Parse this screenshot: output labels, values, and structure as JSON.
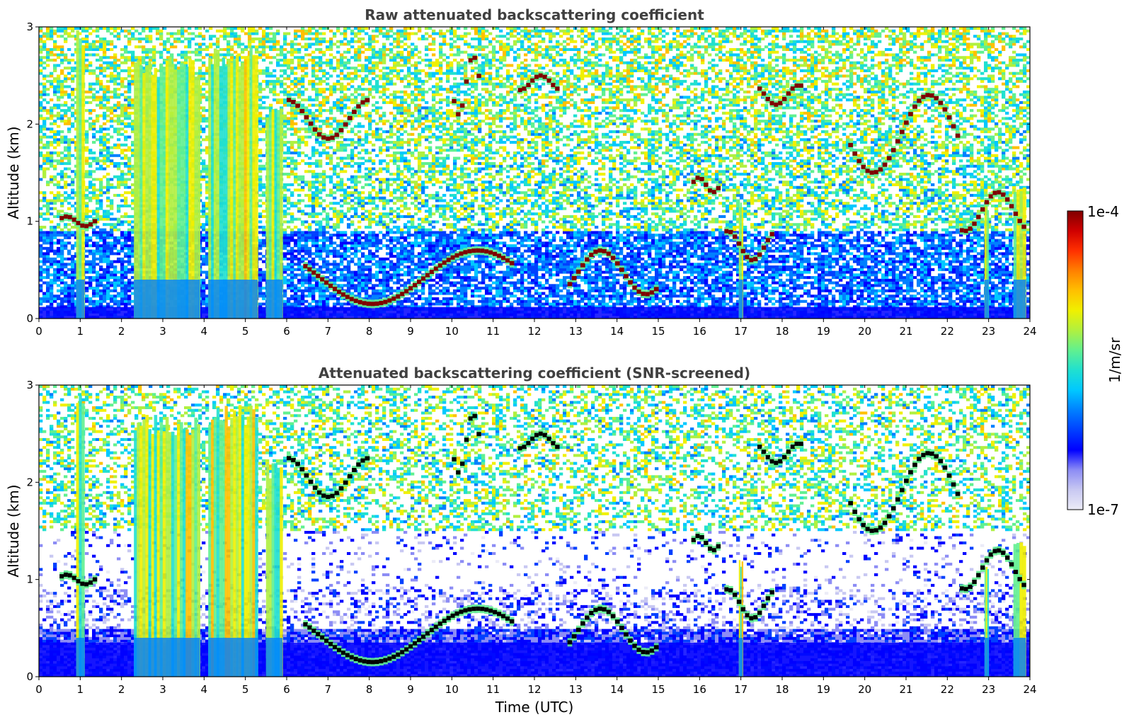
{
  "chart_data": [
    {
      "type": "heatmap",
      "title": "Raw attenuated backscattering coefficient",
      "xlabel": "",
      "ylabel": "Altitude (km)",
      "xlim": [
        0,
        24
      ],
      "ylim": [
        0,
        3
      ],
      "xticks": [
        "0",
        "1",
        "2",
        "3",
        "4",
        "5",
        "6",
        "7",
        "8",
        "9",
        "10",
        "11",
        "12",
        "13",
        "14",
        "15",
        "16",
        "17",
        "18",
        "19",
        "20",
        "21",
        "22",
        "23",
        "24"
      ],
      "yticks": [
        "0",
        "1",
        "2",
        "3"
      ],
      "layers": [
        {
          "name": "surface-aerosol",
          "x": [
            0,
            24
          ],
          "y": [
            0,
            0.12
          ],
          "level": "blue"
        },
        {
          "name": "noise-field",
          "x": [
            0,
            24
          ],
          "y": [
            0.12,
            3
          ],
          "level": "cyan-green speckle"
        }
      ],
      "features": [
        {
          "kind": "thick-column",
          "x": [
            0.9,
            1.1
          ],
          "y": [
            0,
            3
          ]
        },
        {
          "kind": "thick-column",
          "x": [
            2.3,
            3.9
          ],
          "y": [
            0,
            2.7
          ]
        },
        {
          "kind": "thick-column",
          "x": [
            4.1,
            5.3
          ],
          "y": [
            0,
            2.8
          ]
        },
        {
          "kind": "thick-column",
          "x": [
            5.5,
            5.9
          ],
          "y": [
            0,
            2.2
          ]
        },
        {
          "kind": "thin-column",
          "x": [
            16.95,
            17.05
          ],
          "y": [
            0,
            1.2
          ]
        },
        {
          "kind": "thin-column",
          "x": [
            22.9,
            23.0
          ],
          "y": [
            0,
            1.2
          ]
        },
        {
          "kind": "thin-column",
          "x": [
            23.6,
            23.9
          ],
          "y": [
            0,
            1.4
          ]
        },
        {
          "kind": "cloud-layer",
          "x": [
            0.5,
            1.4
          ],
          "y": [
            0.95,
            1.05
          ]
        },
        {
          "kind": "cloud-layer",
          "x": [
            6.0,
            8.0
          ],
          "y": [
            1.85,
            2.25
          ]
        },
        {
          "kind": "cloud-layer",
          "x": [
            6.4,
            11.5
          ],
          "y": [
            0.15,
            0.7
          ]
        },
        {
          "kind": "cloud-layer",
          "x": [
            10.0,
            10.7
          ],
          "y": [
            2.1,
            2.7
          ]
        },
        {
          "kind": "cloud-layer",
          "x": [
            11.6,
            12.6
          ],
          "y": [
            2.35,
            2.5
          ]
        },
        {
          "kind": "cloud-layer",
          "x": [
            12.8,
            15.0
          ],
          "y": [
            0.25,
            0.7
          ]
        },
        {
          "kind": "cloud-layer",
          "x": [
            15.8,
            16.5
          ],
          "y": [
            1.3,
            1.45
          ]
        },
        {
          "kind": "cloud-layer",
          "x": [
            16.6,
            17.8
          ],
          "y": [
            0.6,
            0.9
          ]
        },
        {
          "kind": "cloud-layer",
          "x": [
            17.4,
            18.5
          ],
          "y": [
            2.2,
            2.4
          ]
        },
        {
          "kind": "cloud-layer",
          "x": [
            19.6,
            22.3
          ],
          "y": [
            1.5,
            2.3
          ]
        },
        {
          "kind": "cloud-layer",
          "x": [
            22.3,
            23.9
          ],
          "y": [
            0.9,
            1.3
          ]
        }
      ]
    },
    {
      "type": "heatmap",
      "title": "Attenuated backscattering coefficient (SNR-screened)",
      "xlabel": "Time (UTC)",
      "ylabel": "Altitude (km)",
      "xlim": [
        0,
        24
      ],
      "ylim": [
        0,
        3
      ],
      "xticks": [
        "0",
        "1",
        "2",
        "3",
        "4",
        "5",
        "6",
        "7",
        "8",
        "9",
        "10",
        "11",
        "12",
        "13",
        "14",
        "15",
        "16",
        "17",
        "18",
        "19",
        "20",
        "21",
        "22",
        "23",
        "24"
      ],
      "yticks": [
        "0",
        "1",
        "2",
        "3"
      ],
      "layers": [
        {
          "name": "boundary-layer",
          "x": [
            0,
            24
          ],
          "y": [
            0,
            0.9
          ],
          "level": "blue"
        },
        {
          "name": "screened-gap",
          "x": [
            0,
            24
          ],
          "y": [
            0.5,
            1.5
          ],
          "level": "white (screened)"
        },
        {
          "name": "noise-field",
          "x": [
            0,
            24
          ],
          "y": [
            1.5,
            3
          ],
          "level": "cyan-green speckle"
        }
      ],
      "features": [
        {
          "kind": "thick-column",
          "x": [
            0.9,
            1.1
          ],
          "y": [
            0,
            3
          ]
        },
        {
          "kind": "thick-column",
          "x": [
            2.3,
            3.9
          ],
          "y": [
            0,
            2.7
          ]
        },
        {
          "kind": "thick-column",
          "x": [
            4.1,
            5.3
          ],
          "y": [
            0,
            2.8
          ]
        },
        {
          "kind": "thick-column",
          "x": [
            5.5,
            5.9
          ],
          "y": [
            0,
            2.2
          ]
        },
        {
          "kind": "thin-column",
          "x": [
            16.95,
            17.05
          ],
          "y": [
            0,
            1.2
          ]
        },
        {
          "kind": "thin-column",
          "x": [
            22.9,
            23.0
          ],
          "y": [
            0,
            1.2
          ]
        },
        {
          "kind": "thin-column",
          "x": [
            23.6,
            23.9
          ],
          "y": [
            0,
            1.4
          ]
        },
        {
          "kind": "cloud-layer",
          "x": [
            0.5,
            1.4
          ],
          "y": [
            0.95,
            1.05
          ]
        },
        {
          "kind": "cloud-layer",
          "x": [
            6.0,
            8.0
          ],
          "y": [
            1.85,
            2.25
          ]
        },
        {
          "kind": "cloud-layer",
          "x": [
            6.4,
            11.5
          ],
          "y": [
            0.15,
            0.7
          ]
        },
        {
          "kind": "cloud-layer",
          "x": [
            10.0,
            10.7
          ],
          "y": [
            2.1,
            2.7
          ]
        },
        {
          "kind": "cloud-layer",
          "x": [
            11.6,
            12.6
          ],
          "y": [
            2.35,
            2.5
          ]
        },
        {
          "kind": "cloud-layer",
          "x": [
            12.8,
            15.0
          ],
          "y": [
            0.25,
            0.7
          ]
        },
        {
          "kind": "cloud-layer",
          "x": [
            15.8,
            16.5
          ],
          "y": [
            1.3,
            1.45
          ]
        },
        {
          "kind": "cloud-layer",
          "x": [
            16.6,
            17.8
          ],
          "y": [
            0.6,
            0.9
          ]
        },
        {
          "kind": "cloud-layer",
          "x": [
            17.4,
            18.5
          ],
          "y": [
            2.2,
            2.4
          ]
        },
        {
          "kind": "cloud-layer",
          "x": [
            19.6,
            22.3
          ],
          "y": [
            1.5,
            2.3
          ]
        },
        {
          "kind": "cloud-layer",
          "x": [
            22.3,
            23.9
          ],
          "y": [
            0.9,
            1.3
          ]
        }
      ]
    }
  ],
  "colorbar": {
    "label": "1/m/sr",
    "min_label": "1e-7",
    "max_label": "1e-4",
    "scale": "log",
    "range": [
      1e-07,
      0.0001
    ],
    "colormap": [
      "#ebebf7",
      "#c8c8f2",
      "#8c8cf5",
      "#0000ff",
      "#0040ff",
      "#0080ff",
      "#00c8ff",
      "#20e0d0",
      "#60f090",
      "#b0f040",
      "#f0f000",
      "#ffc000",
      "#ff8000",
      "#ff3000",
      "#d00000",
      "#800000"
    ]
  }
}
